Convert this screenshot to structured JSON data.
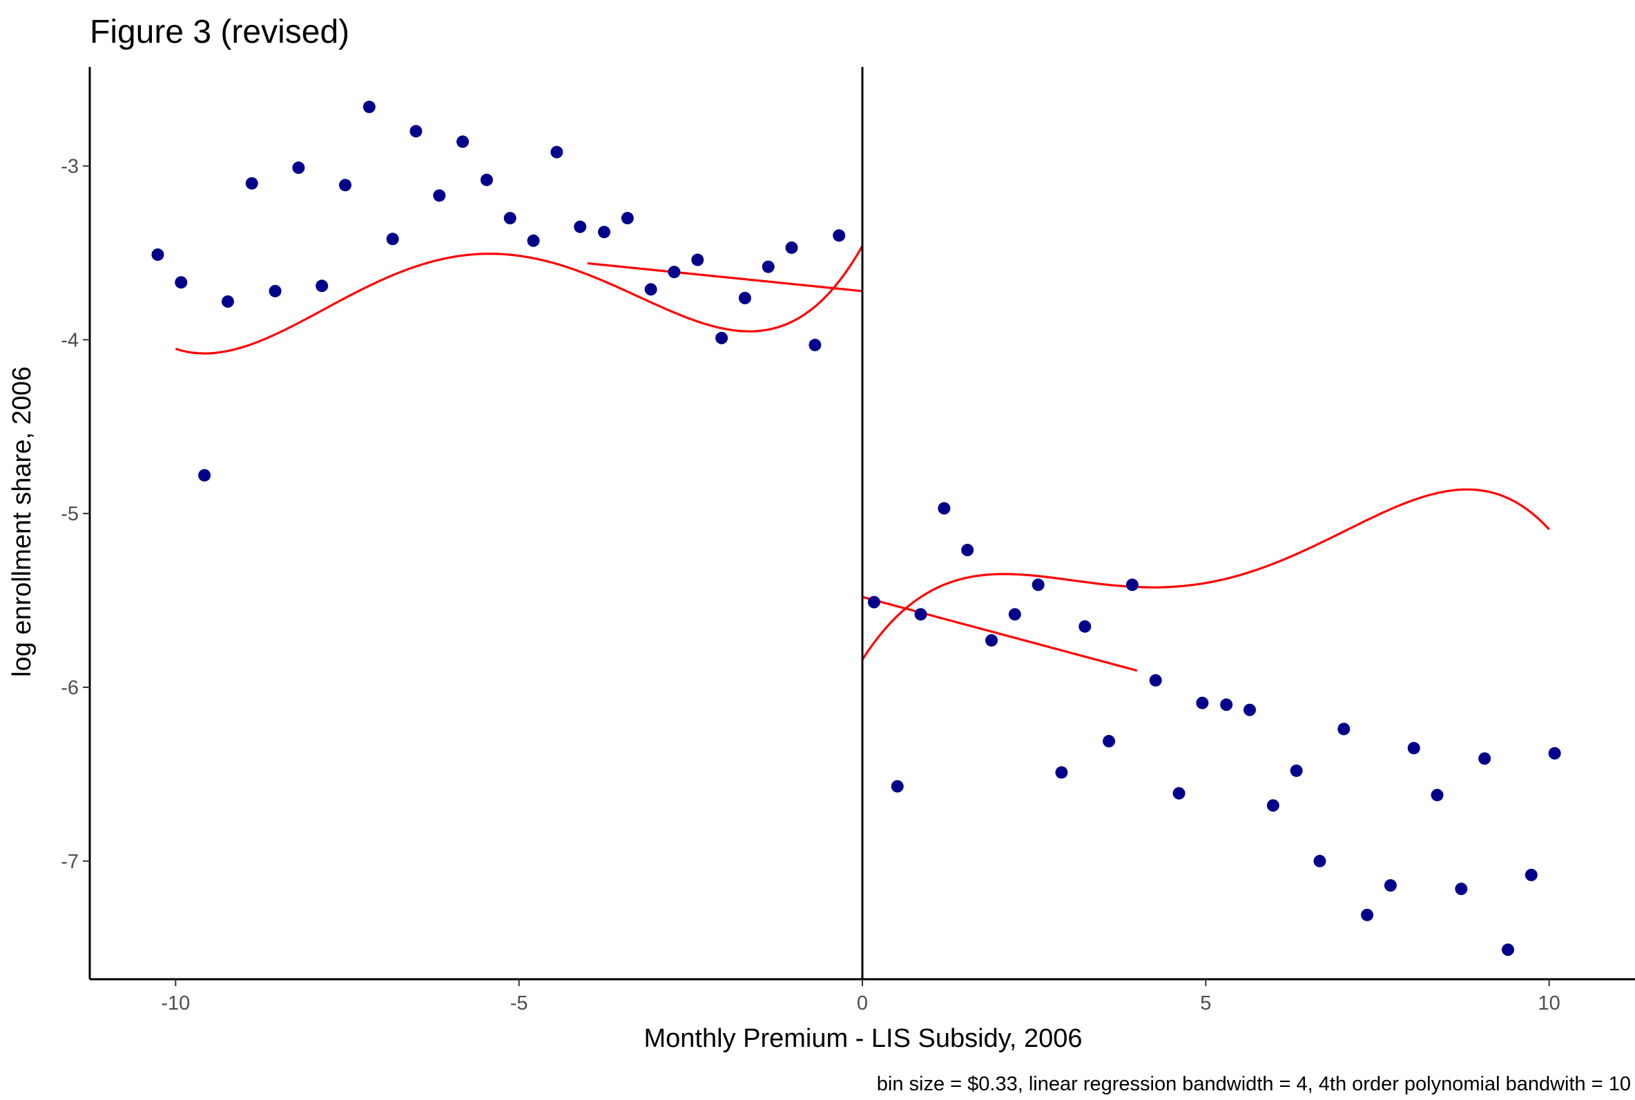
{
  "chart_data": {
    "type": "scatter",
    "title": "Figure 3 (revised)",
    "xlabel": "Monthly Premium - LIS Subsidy, 2006",
    "ylabel": "log enrollment share, 2006",
    "caption": "bin size = $0.33, linear regression bandwidth = 4, 4th order polynomial bandwith = 10",
    "xlim": [
      -11.25,
      11.25
    ],
    "ylim": [
      -7.68,
      -2.43
    ],
    "x_ticks": [
      -10,
      -5,
      0,
      5,
      10
    ],
    "x_tick_labels": [
      "-10",
      "-5",
      "0",
      "5",
      "10"
    ],
    "y_ticks": [
      -3,
      -4,
      -5,
      -6,
      -7
    ],
    "y_tick_labels": [
      "-3",
      "-4",
      "-5",
      "-6",
      "-7"
    ],
    "cutoff_x": 0,
    "grid": false,
    "colors": {
      "points": "#00008b",
      "fit": "#ff0000",
      "axis": "#000000"
    },
    "points": [
      [
        -10.26,
        -3.51
      ],
      [
        -9.92,
        -3.67
      ],
      [
        -9.58,
        -4.78
      ],
      [
        -9.24,
        -3.78
      ],
      [
        -8.89,
        -3.1
      ],
      [
        -8.55,
        -3.72
      ],
      [
        -8.21,
        -3.01
      ],
      [
        -7.87,
        -3.69
      ],
      [
        -7.53,
        -3.11
      ],
      [
        -7.18,
        -2.66
      ],
      [
        -6.84,
        -3.42
      ],
      [
        -6.5,
        -2.8
      ],
      [
        -6.16,
        -3.17
      ],
      [
        -5.82,
        -2.86
      ],
      [
        -5.47,
        -3.08
      ],
      [
        -5.13,
        -3.3
      ],
      [
        -4.79,
        -3.43
      ],
      [
        -4.45,
        -2.92
      ],
      [
        -4.11,
        -3.35
      ],
      [
        -3.76,
        -3.38
      ],
      [
        -3.42,
        -3.3
      ],
      [
        -3.08,
        -3.71
      ],
      [
        -2.74,
        -3.61
      ],
      [
        -2.4,
        -3.54
      ],
      [
        -2.05,
        -3.99
      ],
      [
        -1.71,
        -3.76
      ],
      [
        -1.37,
        -3.58
      ],
      [
        -1.03,
        -3.47
      ],
      [
        -0.69,
        -4.03
      ],
      [
        -0.34,
        -3.4
      ],
      [
        0.17,
        -5.51
      ],
      [
        0.51,
        -6.57
      ],
      [
        0.85,
        -5.58
      ],
      [
        1.19,
        -4.97
      ],
      [
        1.53,
        -5.21
      ],
      [
        1.88,
        -5.73
      ],
      [
        2.22,
        -5.58
      ],
      [
        2.56,
        -5.41
      ],
      [
        2.9,
        -6.49
      ],
      [
        3.24,
        -5.65
      ],
      [
        3.59,
        -6.31
      ],
      [
        3.93,
        -5.41
      ],
      [
        4.27,
        -5.96
      ],
      [
        4.61,
        -6.61
      ],
      [
        4.95,
        -6.09
      ],
      [
        5.3,
        -6.1
      ],
      [
        5.64,
        -6.13
      ],
      [
        5.98,
        -6.68
      ],
      [
        6.32,
        -6.48
      ],
      [
        6.66,
        -7.0
      ],
      [
        7.01,
        -6.24
      ],
      [
        7.35,
        -7.31
      ],
      [
        7.69,
        -7.14
      ],
      [
        8.03,
        -6.35
      ],
      [
        8.37,
        -6.62
      ],
      [
        8.72,
        -7.16
      ],
      [
        9.06,
        -6.41
      ],
      [
        9.4,
        -7.51
      ],
      [
        9.74,
        -7.08
      ],
      [
        10.08,
        -6.38
      ]
    ],
    "fits": [
      {
        "type": "linear",
        "side": "left",
        "domain": [
          -4,
          0
        ],
        "coef": [
          -3.72,
          -0.04
        ]
      },
      {
        "type": "linear",
        "side": "right",
        "domain": [
          0,
          4
        ],
        "coef": [
          -5.48,
          -0.106
        ]
      },
      {
        "type": "poly4",
        "side": "left",
        "domain": [
          -10,
          0
        ],
        "coef": [
          -3.46,
          0.7026,
          0.31484,
          0.045584,
          0.0020534
        ]
      },
      {
        "type": "poly4",
        "side": "right",
        "domain": [
          0,
          10
        ],
        "coef": [
          -5.84,
          0.6122,
          -0.255335,
          0.040042,
          -0.0019882
        ]
      }
    ]
  }
}
